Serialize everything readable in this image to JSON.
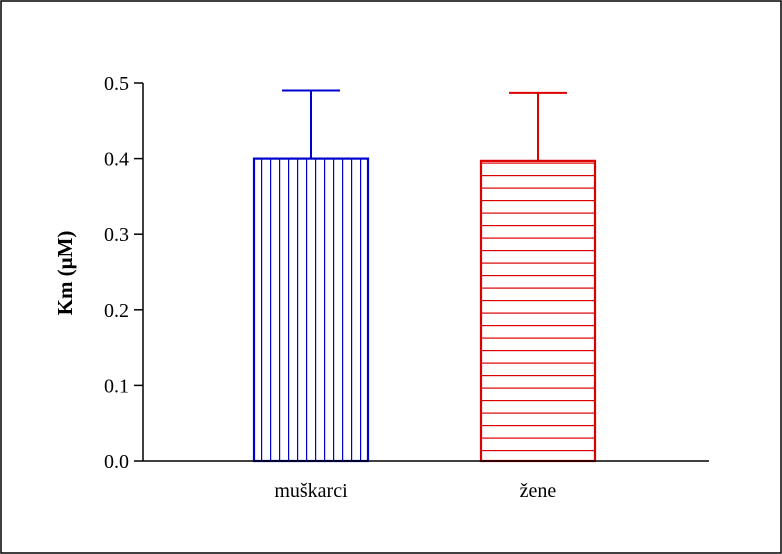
{
  "chart_data": {
    "type": "bar",
    "categories": [
      "muškarci",
      "žene"
    ],
    "values": [
      0.4,
      0.397
    ],
    "error_upper": [
      0.49,
      0.487
    ],
    "title": "",
    "xlabel": "",
    "ylabel": "Km (μM)",
    "ylim": [
      0.0,
      0.5
    ],
    "y_ticks": [
      "0.0",
      "0.1",
      "0.2",
      "0.3",
      "0.4",
      "0.5"
    ],
    "grid": false,
    "bar_colors": [
      "#0000cc",
      "#dd0000"
    ],
    "bar_patterns": [
      "vertical-lines",
      "horizontal-lines"
    ]
  }
}
